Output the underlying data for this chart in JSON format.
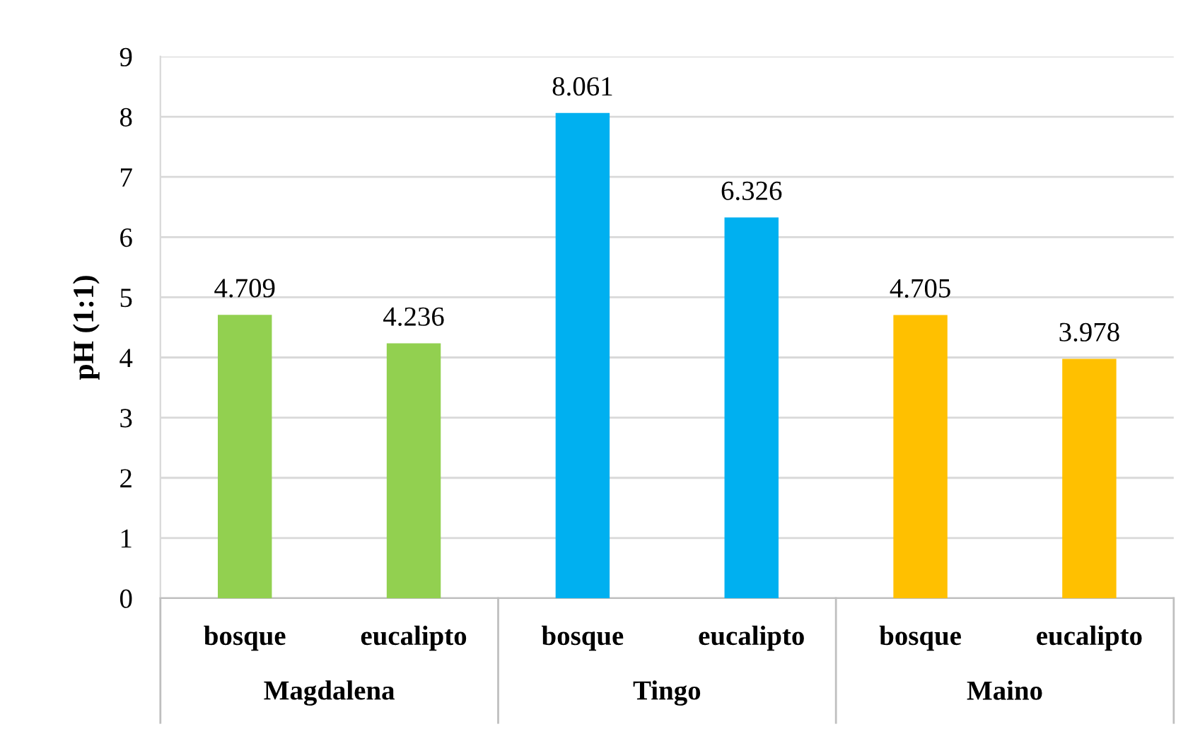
{
  "chart_data": {
    "type": "bar",
    "ylabel": "pH (1:1)",
    "categories": [
      "bosque",
      "eucalipto",
      "bosque",
      "eucalipto",
      "bosque",
      "eucalipto"
    ],
    "values": [
      4.709,
      4.236,
      8.061,
      6.326,
      4.705,
      3.978
    ],
    "colors": [
      "#92d050",
      "#92d050",
      "#00b0f0",
      "#00b0f0",
      "#ffc000",
      "#ffc000"
    ],
    "annotations": [
      "Magdalena",
      "Tingo",
      "Maino"
    ],
    "ylim": [
      0,
      9
    ],
    "yticks": [
      0,
      1,
      2,
      3,
      4,
      5,
      6,
      7,
      8,
      9
    ],
    "grid": "y",
    "data_labels": true
  }
}
